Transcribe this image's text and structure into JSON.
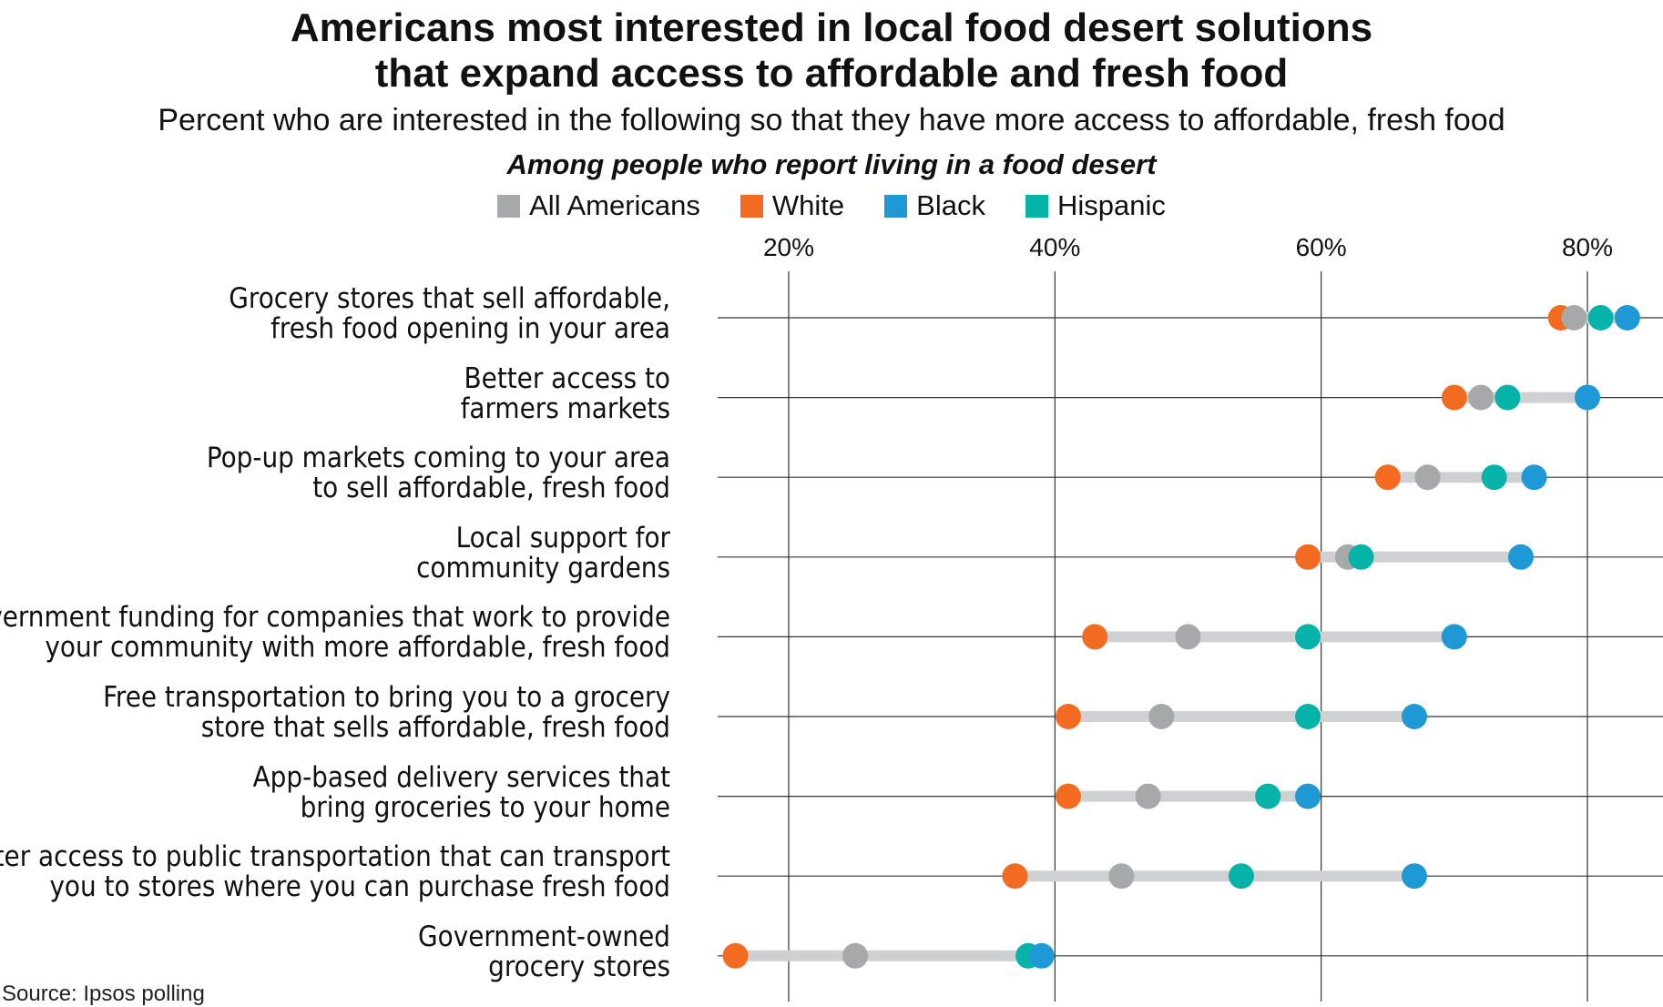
{
  "chart_data": {
    "type": "dot-plot",
    "title": [
      "Americans most interested in local food desert solutions",
      "that expand access to affordable and fresh food"
    ],
    "subtitle": "Percent who are interested in the following so that they have more access to affordable, fresh food",
    "group_note": "Among people who report living in a food desert",
    "source": "Source: Ipsos polling",
    "x_ticks": [
      "20%",
      "40%",
      "60%",
      "80%"
    ],
    "x_tick_values": [
      20,
      40,
      60,
      80
    ],
    "xlim": [
      14.5,
      85
    ],
    "legend_position": "top-center",
    "series": [
      {
        "name": "All Americans",
        "color": "#a7a8aa"
      },
      {
        "name": "White",
        "color": "#f26b21"
      },
      {
        "name": "Black",
        "color": "#1f98d6"
      },
      {
        "name": "Hispanic",
        "color": "#06b3a9"
      }
    ],
    "categories": [
      {
        "label": [
          "Grocery stores that sell affordable,",
          "fresh food opening in your area"
        ],
        "values": {
          "All Americans": 79,
          "White": 78,
          "Black": 83,
          "Hispanic": 81
        }
      },
      {
        "label": [
          "Better access to",
          "farmers markets"
        ],
        "values": {
          "All Americans": 72,
          "White": 70,
          "Black": 80,
          "Hispanic": 74
        }
      },
      {
        "label": [
          "Pop-up markets coming to your area",
          "to sell affordable, fresh food"
        ],
        "values": {
          "All Americans": 68,
          "White": 65,
          "Black": 76,
          "Hispanic": 73
        }
      },
      {
        "label": [
          "Local support for",
          "community gardens"
        ],
        "values": {
          "All Americans": 62,
          "White": 59,
          "Black": 75,
          "Hispanic": 63
        }
      },
      {
        "label": [
          "Government funding for companies that work to provide",
          "your community with more affordable, fresh food"
        ],
        "values": {
          "All Americans": 50,
          "White": 43,
          "Black": 70,
          "Hispanic": 59
        }
      },
      {
        "label": [
          "Free transportation to bring you to a grocery",
          "store that sells affordable, fresh food"
        ],
        "values": {
          "All Americans": 48,
          "White": 41,
          "Black": 67,
          "Hispanic": 59
        }
      },
      {
        "label": [
          "App-based delivery services that",
          "bring groceries to your home"
        ],
        "values": {
          "All Americans": 47,
          "White": 41,
          "Black": 59,
          "Hispanic": 56
        }
      },
      {
        "label": [
          "Better access to public transportation that can transport",
          "you to stores where you can purchase fresh food"
        ],
        "values": {
          "All Americans": 45,
          "White": 37,
          "Black": 67,
          "Hispanic": 54
        }
      },
      {
        "label": [
          "Government-owned",
          "grocery stores"
        ],
        "values": {
          "All Americans": 25,
          "White": 16,
          "Black": 39,
          "Hispanic": 38
        }
      }
    ]
  }
}
